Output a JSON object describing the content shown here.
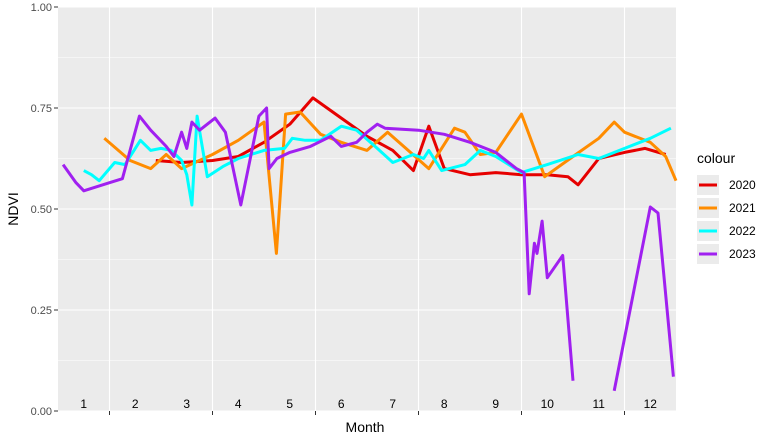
{
  "chart_data": {
    "type": "line",
    "xlabel": "Month",
    "ylabel": "NDVI",
    "ylim": [
      0,
      1
    ],
    "xlim": [
      0.5,
      12.5
    ],
    "yticks": [
      0.0,
      0.25,
      0.5,
      0.75,
      1.0
    ],
    "ytick_labels": [
      "0.00",
      "0.25",
      "0.50",
      "0.75",
      "1.00"
    ],
    "month_labels": [
      "1",
      "2",
      "3",
      "4",
      "5",
      "6",
      "7",
      "8",
      "9",
      "10",
      "11",
      "12"
    ],
    "grid": true,
    "background": "#EBEBEB",
    "legend_title": "colour",
    "legend_position": "right",
    "series": [
      {
        "name": "2020",
        "color": "#E60000",
        "points": [
          [
            2.4,
            0.62
          ],
          [
            2.9,
            0.615
          ],
          [
            3.5,
            0.62
          ],
          [
            4.0,
            0.63
          ],
          [
            4.5,
            0.665
          ],
          [
            5.0,
            0.71
          ],
          [
            5.45,
            0.775
          ],
          [
            6.0,
            0.725
          ],
          [
            6.5,
            0.68
          ],
          [
            7.0,
            0.645
          ],
          [
            7.4,
            0.595
          ],
          [
            7.7,
            0.705
          ],
          [
            8.0,
            0.6
          ],
          [
            8.5,
            0.585
          ],
          [
            9.0,
            0.59
          ],
          [
            9.5,
            0.585
          ],
          [
            10.0,
            0.585
          ],
          [
            10.4,
            0.58
          ],
          [
            10.6,
            0.56
          ],
          [
            11.0,
            0.625
          ],
          [
            11.5,
            0.64
          ],
          [
            11.9,
            0.65
          ],
          [
            12.3,
            0.635
          ]
        ]
      },
      {
        "name": "2021",
        "color": "#FF8C00",
        "points": [
          [
            1.4,
            0.675
          ],
          [
            1.9,
            0.62
          ],
          [
            2.3,
            0.6
          ],
          [
            2.6,
            0.635
          ],
          [
            2.9,
            0.6
          ],
          [
            3.5,
            0.635
          ],
          [
            4.0,
            0.67
          ],
          [
            4.5,
            0.715
          ],
          [
            4.74,
            0.39
          ],
          [
            4.92,
            0.735
          ],
          [
            5.2,
            0.74
          ],
          [
            5.6,
            0.685
          ],
          [
            6.0,
            0.665
          ],
          [
            6.5,
            0.645
          ],
          [
            6.9,
            0.69
          ],
          [
            7.3,
            0.645
          ],
          [
            7.7,
            0.6
          ],
          [
            8.2,
            0.7
          ],
          [
            8.4,
            0.69
          ],
          [
            8.7,
            0.635
          ],
          [
            9.0,
            0.64
          ],
          [
            9.5,
            0.735
          ],
          [
            9.95,
            0.58
          ],
          [
            10.5,
            0.63
          ],
          [
            11.0,
            0.675
          ],
          [
            11.3,
            0.715
          ],
          [
            11.5,
            0.69
          ],
          [
            12.0,
            0.665
          ],
          [
            12.3,
            0.63
          ],
          [
            12.5,
            0.57
          ]
        ]
      },
      {
        "name": "2022",
        "color": "#00FFFF",
        "points": [
          [
            1.0,
            0.595
          ],
          [
            1.15,
            0.585
          ],
          [
            1.3,
            0.57
          ],
          [
            1.6,
            0.615
          ],
          [
            1.8,
            0.61
          ],
          [
            2.1,
            0.67
          ],
          [
            2.3,
            0.645
          ],
          [
            2.5,
            0.65
          ],
          [
            2.7,
            0.645
          ],
          [
            2.9,
            0.62
          ],
          [
            3.0,
            0.585
          ],
          [
            3.1,
            0.51
          ],
          [
            3.2,
            0.73
          ],
          [
            3.4,
            0.58
          ],
          [
            3.7,
            0.605
          ],
          [
            4.0,
            0.625
          ],
          [
            4.5,
            0.645
          ],
          [
            4.9,
            0.65
          ],
          [
            5.05,
            0.675
          ],
          [
            5.3,
            0.67
          ],
          [
            5.6,
            0.67
          ],
          [
            6.0,
            0.705
          ],
          [
            6.3,
            0.695
          ],
          [
            6.7,
            0.65
          ],
          [
            7.0,
            0.615
          ],
          [
            7.4,
            0.635
          ],
          [
            7.6,
            0.625
          ],
          [
            7.7,
            0.645
          ],
          [
            7.95,
            0.595
          ],
          [
            8.4,
            0.61
          ],
          [
            8.7,
            0.645
          ],
          [
            9.0,
            0.63
          ],
          [
            9.5,
            0.59
          ],
          [
            10.0,
            0.61
          ],
          [
            10.6,
            0.635
          ],
          [
            11.0,
            0.625
          ],
          [
            11.5,
            0.65
          ],
          [
            12.0,
            0.675
          ],
          [
            12.4,
            0.7
          ]
        ]
      },
      {
        "name": "2023",
        "color": "#A020F0",
        "points": [
          [
            0.6,
            0.61
          ],
          [
            0.85,
            0.565
          ],
          [
            1.0,
            0.545
          ],
          [
            1.5,
            0.565
          ],
          [
            1.75,
            0.575
          ],
          [
            2.08,
            0.73
          ],
          [
            2.3,
            0.695
          ],
          [
            2.6,
            0.655
          ],
          [
            2.75,
            0.63
          ],
          [
            2.9,
            0.69
          ],
          [
            3.0,
            0.65
          ],
          [
            3.1,
            0.715
          ],
          [
            3.25,
            0.695
          ],
          [
            3.55,
            0.725
          ],
          [
            3.75,
            0.69
          ],
          [
            4.05,
            0.51
          ],
          [
            4.4,
            0.73
          ],
          [
            4.55,
            0.75
          ],
          [
            4.6,
            0.6
          ],
          [
            4.75,
            0.625
          ],
          [
            5.0,
            0.64
          ],
          [
            5.4,
            0.655
          ],
          [
            5.8,
            0.68
          ],
          [
            6.0,
            0.655
          ],
          [
            6.3,
            0.665
          ],
          [
            6.5,
            0.69
          ],
          [
            6.7,
            0.71
          ],
          [
            6.85,
            0.7
          ],
          [
            7.5,
            0.695
          ],
          [
            8.0,
            0.685
          ],
          [
            8.5,
            0.665
          ],
          [
            9.0,
            0.64
          ],
          [
            9.4,
            0.6
          ],
          [
            9.55,
            0.59
          ],
          [
            9.65,
            0.29
          ],
          [
            9.75,
            0.415
          ],
          [
            9.8,
            0.39
          ],
          [
            9.9,
            0.47
          ],
          [
            10.0,
            0.33
          ],
          [
            10.3,
            0.385
          ],
          [
            10.5,
            0.075
          ],
          null,
          [
            11.3,
            0.05
          ],
          [
            12.0,
            0.505
          ],
          [
            12.15,
            0.49
          ],
          [
            12.45,
            0.085
          ]
        ]
      }
    ]
  }
}
